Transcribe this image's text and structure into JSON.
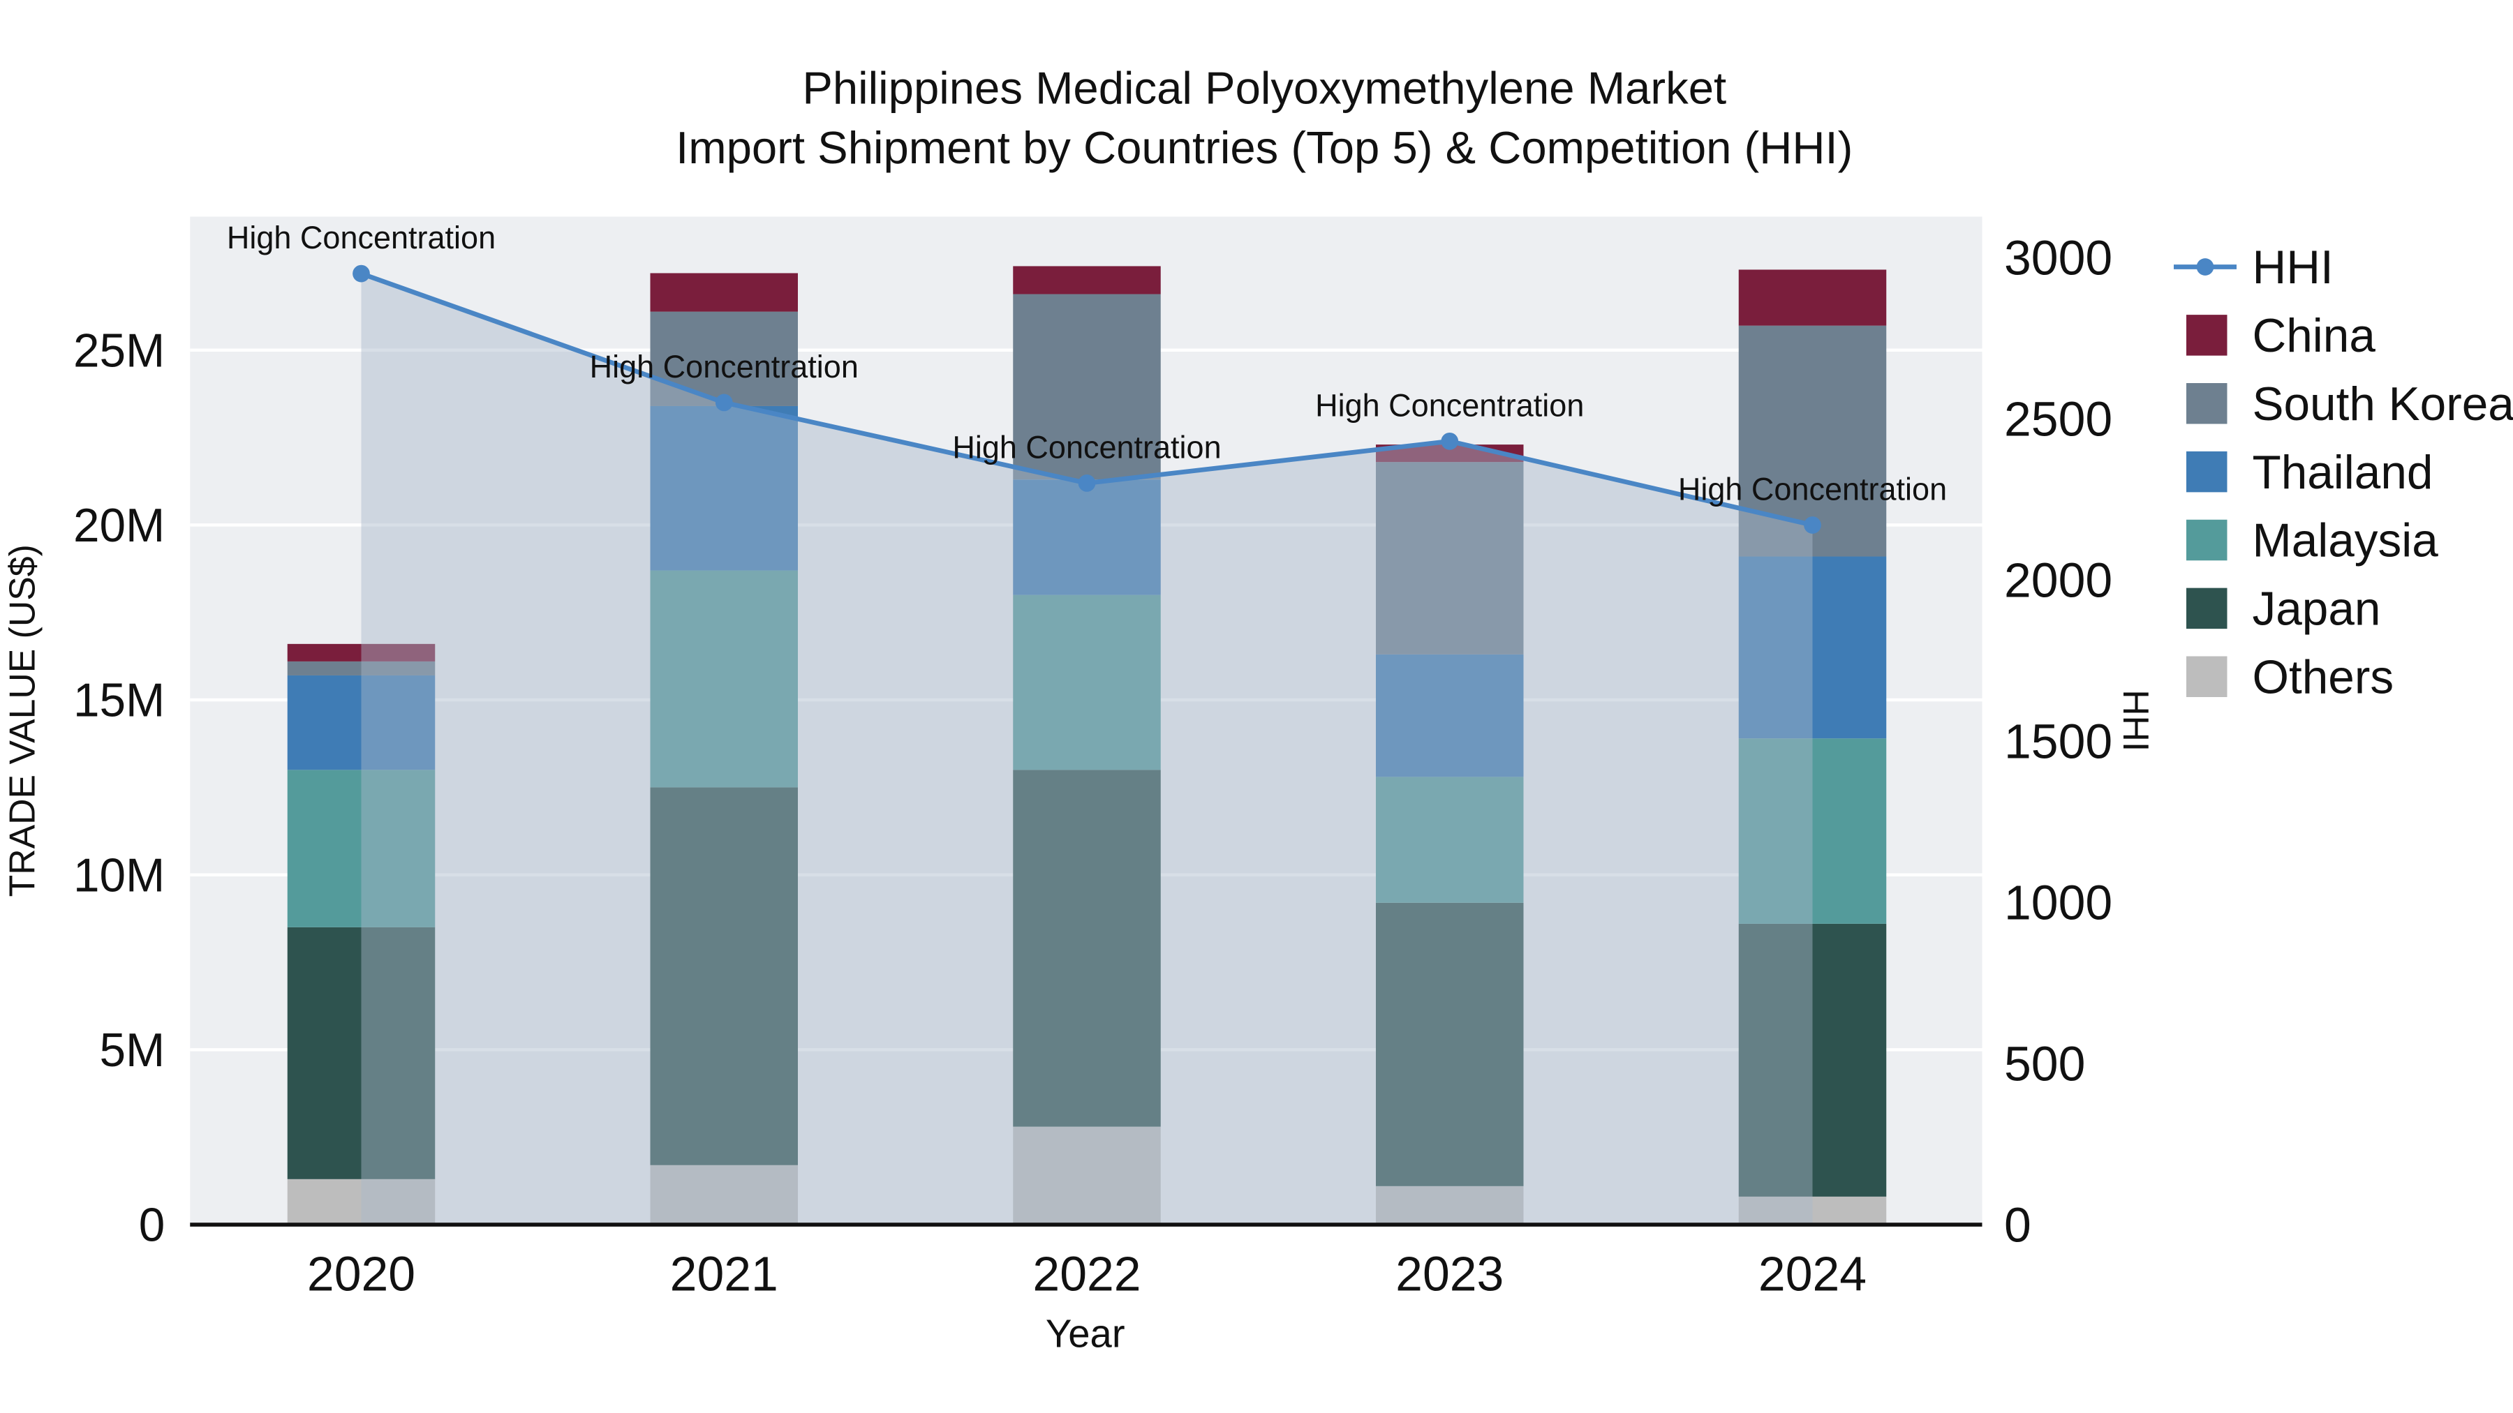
{
  "title": {
    "line1": "Philippines Medical Polyoxymethylene Market",
    "line2": "Import Shipment by Countries (Top 5) & Competition (HHI)"
  },
  "chart_data": {
    "type": "bar+line",
    "subtype": "stacked-bar-with-secondary-axis-line-and-area",
    "unit": "million USD",
    "plot_bg": "#edeff2",
    "grid_color": "#ffffff",
    "categories": [
      "2020",
      "2021",
      "2022",
      "2023",
      "2024"
    ],
    "series": [
      {
        "name": "Others",
        "color": "#bdbdbd",
        "values": [
          1.3,
          1.7,
          2.8,
          1.1,
          0.8
        ]
      },
      {
        "name": "Japan",
        "color": "#2e534f",
        "values": [
          7.2,
          10.8,
          10.2,
          8.1,
          7.8
        ]
      },
      {
        "name": "Malaysia",
        "color": "#549b9b",
        "values": [
          4.5,
          6.2,
          5.0,
          3.6,
          5.3
        ]
      },
      {
        "name": "Thailand",
        "color": "#3f7cb5",
        "values": [
          2.7,
          4.7,
          3.3,
          3.5,
          5.2
        ]
      },
      {
        "name": "South Korea",
        "color": "#6e8090",
        "values": [
          0.4,
          2.7,
          5.3,
          5.5,
          6.6
        ]
      },
      {
        "name": "China",
        "color": "#7a1e3c",
        "values": [
          0.5,
          1.1,
          0.8,
          0.5,
          1.6
        ]
      }
    ],
    "stack_totals": [
      16.6,
      27.2,
      27.4,
      22.3,
      27.3
    ],
    "hhi_line": {
      "name": "HHI",
      "color": "#4a86c5",
      "area_color": "rgba(169,185,201,0.45)",
      "values": [
        2950,
        2550,
        2300,
        2430,
        2170
      ],
      "annotations": [
        "High Concentration",
        "High Concentration",
        "High Concentration",
        "High Concentration",
        "High Concentration"
      ]
    },
    "axes": {
      "left": {
        "label": "TRADE VALUE (US$)",
        "ticks": [
          "0",
          "5M",
          "10M",
          "15M",
          "20M",
          "25M"
        ],
        "tick_values": [
          0,
          5,
          10,
          15,
          20,
          25
        ],
        "range_millions": [
          0,
          28.95
        ]
      },
      "right": {
        "label": "HHI",
        "ticks": [
          "0",
          "500",
          "1000",
          "1500",
          "2000",
          "2500",
          "3000"
        ],
        "tick_values": [
          0,
          500,
          1000,
          1500,
          2000,
          2500,
          3000
        ],
        "range": [
          0,
          3143
        ]
      },
      "x": {
        "label": "Year"
      }
    },
    "legend": [
      {
        "label": "HHI",
        "type": "line",
        "color": "#4a86c5"
      },
      {
        "label": "China",
        "type": "square",
        "color": "#7a1e3c"
      },
      {
        "label": "South Korea",
        "type": "square",
        "color": "#6e8090"
      },
      {
        "label": "Thailand",
        "type": "square",
        "color": "#3f7cb5"
      },
      {
        "label": "Malaysia",
        "type": "square",
        "color": "#549b9b"
      },
      {
        "label": "Japan",
        "type": "square",
        "color": "#2e534f"
      },
      {
        "label": "Others",
        "type": "square",
        "color": "#bdbdbd"
      }
    ]
  }
}
